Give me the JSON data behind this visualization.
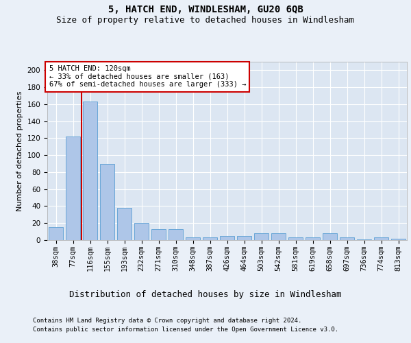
{
  "title1": "5, HATCH END, WINDLESHAM, GU20 6QB",
  "title2": "Size of property relative to detached houses in Windlesham",
  "xlabel": "Distribution of detached houses by size in Windlesham",
  "ylabel": "Number of detached properties",
  "footnote1": "Contains HM Land Registry data © Crown copyright and database right 2024.",
  "footnote2": "Contains public sector information licensed under the Open Government Licence v3.0.",
  "bar_labels": [
    "38sqm",
    "77sqm",
    "116sqm",
    "155sqm",
    "193sqm",
    "232sqm",
    "271sqm",
    "310sqm",
    "348sqm",
    "387sqm",
    "426sqm",
    "464sqm",
    "503sqm",
    "542sqm",
    "581sqm",
    "619sqm",
    "658sqm",
    "697sqm",
    "736sqm",
    "774sqm",
    "813sqm"
  ],
  "bar_values": [
    15,
    122,
    163,
    90,
    38,
    20,
    13,
    13,
    3,
    3,
    5,
    5,
    8,
    8,
    3,
    3,
    8,
    3,
    1,
    3,
    2
  ],
  "bar_color": "#aec6e8",
  "bar_edge_color": "#5a9fd4",
  "background_color": "#eaf0f8",
  "plot_bg_color": "#dce6f2",
  "grid_color": "#ffffff",
  "annotation_box_text": "5 HATCH END: 120sqm\n← 33% of detached houses are smaller (163)\n67% of semi-detached houses are larger (333) →",
  "annotation_box_color": "#ffffff",
  "annotation_box_edge": "#cc0000",
  "vline_color": "#cc0000",
  "ylim": [
    0,
    210
  ],
  "yticks": [
    0,
    20,
    40,
    60,
    80,
    100,
    120,
    140,
    160,
    180,
    200
  ],
  "title1_fontsize": 10,
  "title2_fontsize": 9,
  "xlabel_fontsize": 9,
  "ylabel_fontsize": 8,
  "tick_fontsize": 7.5,
  "annot_fontsize": 7.5,
  "footnote_fontsize": 6.5
}
